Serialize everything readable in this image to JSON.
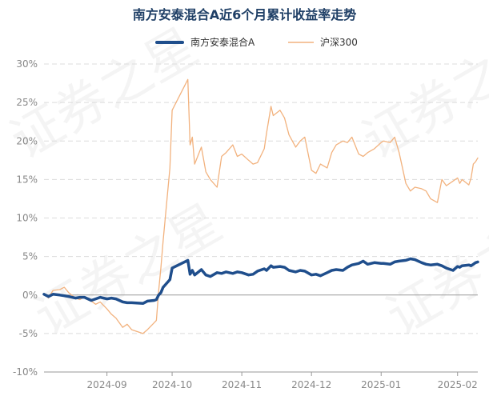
{
  "chart_data": {
    "type": "line",
    "title": "南方安泰混合A近6个月累计收益率走势",
    "legend_position": "top",
    "grid": true,
    "y_axis": {
      "min": -10,
      "max": 30,
      "step": 5,
      "tick_labels": [
        "-10%",
        "-5%",
        "0%",
        "5%",
        "10%",
        "15%",
        "20%",
        "25%",
        "30%"
      ]
    },
    "x_axis": {
      "start": "2024-08-05",
      "end": "2025-02-14",
      "ticks": [
        {
          "label": "2024-09",
          "date": "2024-09-02"
        },
        {
          "label": "2024-10",
          "date": "2024-10-01"
        },
        {
          "label": "2024-11",
          "date": "2024-11-01"
        },
        {
          "label": "2024-12",
          "date": "2024-12-02"
        },
        {
          "label": "2025-01",
          "date": "2025-01-02"
        },
        {
          "label": "2025-02",
          "date": "2025-02-05"
        }
      ]
    },
    "watermark": "证券之星",
    "series": [
      {
        "name": "南方安泰混合A",
        "color": "#1f4e8c",
        "width": 3.5,
        "points": [
          [
            "2024-08-05",
            0.1
          ],
          [
            "2024-08-07",
            -0.2
          ],
          [
            "2024-08-09",
            0.1
          ],
          [
            "2024-08-12",
            0.0
          ],
          [
            "2024-08-14",
            -0.1
          ],
          [
            "2024-08-16",
            -0.2
          ],
          [
            "2024-08-19",
            -0.4
          ],
          [
            "2024-08-21",
            -0.3
          ],
          [
            "2024-08-23",
            -0.3
          ],
          [
            "2024-08-26",
            -0.7
          ],
          [
            "2024-08-28",
            -0.5
          ],
          [
            "2024-08-30",
            -0.3
          ],
          [
            "2024-09-02",
            -0.5
          ],
          [
            "2024-09-04",
            -0.4
          ],
          [
            "2024-09-06",
            -0.5
          ],
          [
            "2024-09-09",
            -0.9
          ],
          [
            "2024-09-11",
            -1.0
          ],
          [
            "2024-09-13",
            -1.0
          ],
          [
            "2024-09-18",
            -1.1
          ],
          [
            "2024-09-20",
            -0.8
          ],
          [
            "2024-09-23",
            -0.7
          ],
          [
            "2024-09-24",
            -0.6
          ],
          [
            "2024-09-25",
            0.0
          ],
          [
            "2024-09-26",
            0.3
          ],
          [
            "2024-09-27",
            1.0
          ],
          [
            "2024-09-30",
            2.0
          ],
          [
            "2024-10-01",
            3.5
          ],
          [
            "2024-10-08",
            4.5
          ],
          [
            "2024-10-09",
            2.7
          ],
          [
            "2024-10-10",
            3.2
          ],
          [
            "2024-10-11",
            2.6
          ],
          [
            "2024-10-14",
            3.3
          ],
          [
            "2024-10-16",
            2.6
          ],
          [
            "2024-10-18",
            2.4
          ],
          [
            "2024-10-21",
            2.9
          ],
          [
            "2024-10-23",
            2.8
          ],
          [
            "2024-10-25",
            3.0
          ],
          [
            "2024-10-28",
            2.8
          ],
          [
            "2024-10-30",
            3.0
          ],
          [
            "2024-11-01",
            2.9
          ],
          [
            "2024-11-04",
            2.6
          ],
          [
            "2024-11-06",
            2.7
          ],
          [
            "2024-11-08",
            3.1
          ],
          [
            "2024-11-11",
            3.4
          ],
          [
            "2024-11-12",
            3.2
          ],
          [
            "2024-11-14",
            3.8
          ],
          [
            "2024-11-15",
            3.6
          ],
          [
            "2024-11-18",
            3.7
          ],
          [
            "2024-11-20",
            3.6
          ],
          [
            "2024-11-22",
            3.2
          ],
          [
            "2024-11-25",
            3.0
          ],
          [
            "2024-11-27",
            3.2
          ],
          [
            "2024-11-29",
            3.1
          ],
          [
            "2024-12-02",
            2.6
          ],
          [
            "2024-12-04",
            2.7
          ],
          [
            "2024-12-06",
            2.5
          ],
          [
            "2024-12-09",
            2.9
          ],
          [
            "2024-12-11",
            3.2
          ],
          [
            "2024-12-13",
            3.3
          ],
          [
            "2024-12-16",
            3.2
          ],
          [
            "2024-12-18",
            3.6
          ],
          [
            "2024-12-20",
            3.9
          ],
          [
            "2024-12-23",
            4.1
          ],
          [
            "2024-12-25",
            4.4
          ],
          [
            "2024-12-27",
            4.0
          ],
          [
            "2024-12-30",
            4.2
          ],
          [
            "2025-01-02",
            4.1
          ],
          [
            "2025-01-03",
            4.1
          ],
          [
            "2025-01-06",
            4.0
          ],
          [
            "2025-01-08",
            4.3
          ],
          [
            "2025-01-10",
            4.4
          ],
          [
            "2025-01-13",
            4.5
          ],
          [
            "2025-01-15",
            4.7
          ],
          [
            "2025-01-17",
            4.6
          ],
          [
            "2025-01-20",
            4.2
          ],
          [
            "2025-01-22",
            4.0
          ],
          [
            "2025-01-24",
            3.9
          ],
          [
            "2025-01-27",
            4.0
          ],
          [
            "2025-01-29",
            3.8
          ],
          [
            "2025-01-31",
            3.5
          ],
          [
            "2025-02-03",
            3.2
          ],
          [
            "2025-02-05",
            3.7
          ],
          [
            "2025-02-06",
            3.6
          ],
          [
            "2025-02-07",
            3.8
          ],
          [
            "2025-02-10",
            3.9
          ],
          [
            "2025-02-11",
            3.8
          ],
          [
            "2025-02-12",
            4.0
          ],
          [
            "2025-02-13",
            4.2
          ],
          [
            "2025-02-14",
            4.3
          ]
        ]
      },
      {
        "name": "沪深300",
        "color": "#f2b27e",
        "width": 1.3,
        "points": [
          [
            "2024-08-05",
            0.2
          ],
          [
            "2024-08-07",
            -0.4
          ],
          [
            "2024-08-09",
            0.6
          ],
          [
            "2024-08-12",
            0.7
          ],
          [
            "2024-08-14",
            1.0
          ],
          [
            "2024-08-16",
            0.3
          ],
          [
            "2024-08-19",
            -0.4
          ],
          [
            "2024-08-21",
            -0.6
          ],
          [
            "2024-08-23",
            -0.2
          ],
          [
            "2024-08-26",
            -0.8
          ],
          [
            "2024-08-28",
            -1.2
          ],
          [
            "2024-08-30",
            -0.9
          ],
          [
            "2024-09-02",
            -1.8
          ],
          [
            "2024-09-04",
            -2.5
          ],
          [
            "2024-09-06",
            -3.0
          ],
          [
            "2024-09-09",
            -4.2
          ],
          [
            "2024-09-11",
            -3.8
          ],
          [
            "2024-09-13",
            -4.5
          ],
          [
            "2024-09-18",
            -5.0
          ],
          [
            "2024-09-20",
            -4.5
          ],
          [
            "2024-09-23",
            -3.6
          ],
          [
            "2024-09-24",
            -3.3
          ],
          [
            "2024-09-25",
            0.5
          ],
          [
            "2024-09-26",
            3.5
          ],
          [
            "2024-09-27",
            7.0
          ],
          [
            "2024-09-30",
            16.5
          ],
          [
            "2024-10-01",
            24.0
          ],
          [
            "2024-10-08",
            28.0
          ],
          [
            "2024-10-09",
            19.5
          ],
          [
            "2024-10-10",
            20.5
          ],
          [
            "2024-10-11",
            17.0
          ],
          [
            "2024-10-14",
            19.2
          ],
          [
            "2024-10-16",
            16.0
          ],
          [
            "2024-10-18",
            15.0
          ],
          [
            "2024-10-21",
            14.0
          ],
          [
            "2024-10-23",
            18.0
          ],
          [
            "2024-10-25",
            18.5
          ],
          [
            "2024-10-28",
            19.5
          ],
          [
            "2024-10-30",
            18.0
          ],
          [
            "2024-11-01",
            18.3
          ],
          [
            "2024-11-04",
            17.5
          ],
          [
            "2024-11-06",
            17.0
          ],
          [
            "2024-11-08",
            17.2
          ],
          [
            "2024-11-11",
            19.0
          ],
          [
            "2024-11-12",
            21.0
          ],
          [
            "2024-11-14",
            24.5
          ],
          [
            "2024-11-15",
            23.3
          ],
          [
            "2024-11-18",
            24.0
          ],
          [
            "2024-11-20",
            23.0
          ],
          [
            "2024-11-22",
            20.8
          ],
          [
            "2024-11-25",
            19.2
          ],
          [
            "2024-11-27",
            20.0
          ],
          [
            "2024-11-29",
            20.5
          ],
          [
            "2024-12-02",
            16.2
          ],
          [
            "2024-12-04",
            15.8
          ],
          [
            "2024-12-06",
            17.0
          ],
          [
            "2024-12-09",
            16.5
          ],
          [
            "2024-12-11",
            18.5
          ],
          [
            "2024-12-13",
            19.5
          ],
          [
            "2024-12-16",
            20.0
          ],
          [
            "2024-12-18",
            19.8
          ],
          [
            "2024-12-20",
            20.5
          ],
          [
            "2024-12-23",
            18.3
          ],
          [
            "2024-12-25",
            18.0
          ],
          [
            "2024-12-27",
            18.5
          ],
          [
            "2024-12-30",
            19.0
          ],
          [
            "2025-01-02",
            19.8
          ],
          [
            "2025-01-03",
            20.0
          ],
          [
            "2025-01-06",
            19.8
          ],
          [
            "2025-01-08",
            20.5
          ],
          [
            "2025-01-10",
            18.5
          ],
          [
            "2025-01-13",
            14.5
          ],
          [
            "2025-01-15",
            13.5
          ],
          [
            "2025-01-17",
            14.0
          ],
          [
            "2025-01-20",
            13.8
          ],
          [
            "2025-01-22",
            13.5
          ],
          [
            "2025-01-24",
            12.5
          ],
          [
            "2025-01-27",
            12.0
          ],
          [
            "2025-01-29",
            15.0
          ],
          [
            "2025-01-31",
            14.2
          ],
          [
            "2025-02-03",
            14.8
          ],
          [
            "2025-02-05",
            15.2
          ],
          [
            "2025-02-06",
            14.5
          ],
          [
            "2025-02-07",
            15.0
          ],
          [
            "2025-02-10",
            14.3
          ],
          [
            "2025-02-11",
            15.2
          ],
          [
            "2025-02-12",
            17.0
          ],
          [
            "2025-02-13",
            17.3
          ],
          [
            "2025-02-14",
            17.8
          ]
        ]
      }
    ]
  }
}
